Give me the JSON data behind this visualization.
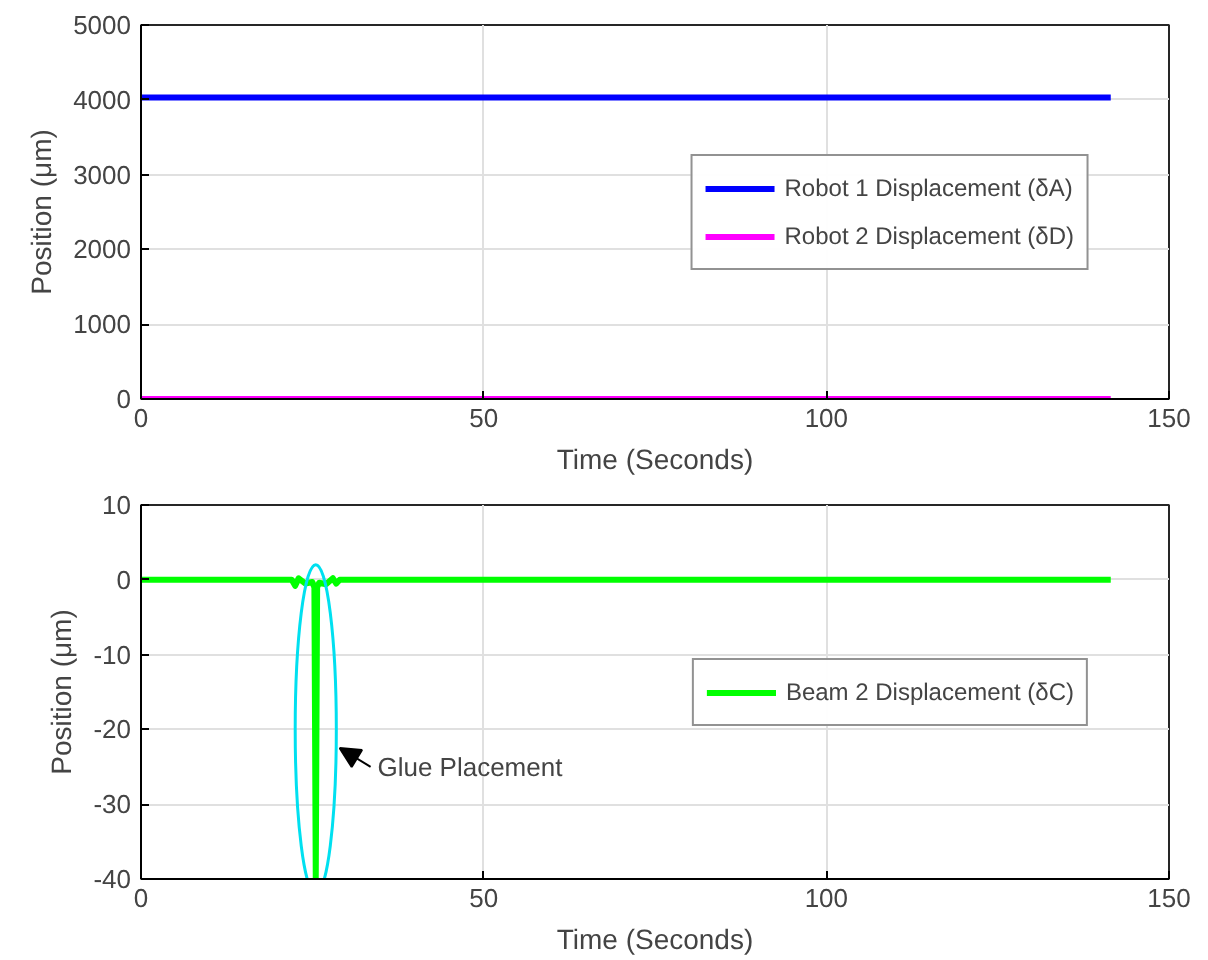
{
  "chart_data": [
    {
      "type": "line",
      "xlabel": "Time (Seconds)",
      "ylabel": "Position (μm)",
      "xlim": [
        0,
        150
      ],
      "ylim": [
        0,
        5000
      ],
      "xticks": [
        0,
        50,
        100,
        150
      ],
      "yticks": [
        0,
        1000,
        2000,
        3000,
        4000,
        5000
      ],
      "grid": true,
      "legend": "right",
      "marker": "none",
      "line_style": "solid",
      "series": [
        {
          "name": "Robot 1 Displacement (δA)",
          "color": "#0000ff",
          "x": [
            0,
            141.5
          ],
          "values": [
            4030,
            4030
          ]
        },
        {
          "name": "Robot 2 Displacement (δD)",
          "color": "#ff00ff",
          "x": [
            0,
            141.5
          ],
          "values": [
            0,
            0
          ]
        }
      ]
    },
    {
      "type": "line",
      "xlabel": "Time (Seconds)",
      "ylabel": "Position (μm)",
      "xlim": [
        0,
        150
      ],
      "ylim": [
        -40,
        10
      ],
      "xticks": [
        0,
        50,
        100,
        150
      ],
      "yticks": [
        -40,
        -30,
        -20,
        -10,
        0,
        10
      ],
      "grid": true,
      "legend": "right",
      "marker": "none",
      "line_style": "solid",
      "annotations": [
        {
          "text": "Glue Placement",
          "x": 25.5,
          "y": -20
        }
      ],
      "series": [
        {
          "name": "Beam 2 Displacement (δC)",
          "color": "#00ff00",
          "x": [
            0,
            22,
            22.5,
            23,
            24,
            25,
            25.3,
            25.5,
            25.7,
            26,
            27,
            28,
            28.5,
            29,
            141.5
          ],
          "values": [
            0,
            0,
            -0.8,
            0.2,
            -0.5,
            -0.3,
            -1,
            -40,
            -1,
            -0.4,
            -0.6,
            0.2,
            -0.5,
            0,
            0
          ]
        }
      ]
    }
  ]
}
